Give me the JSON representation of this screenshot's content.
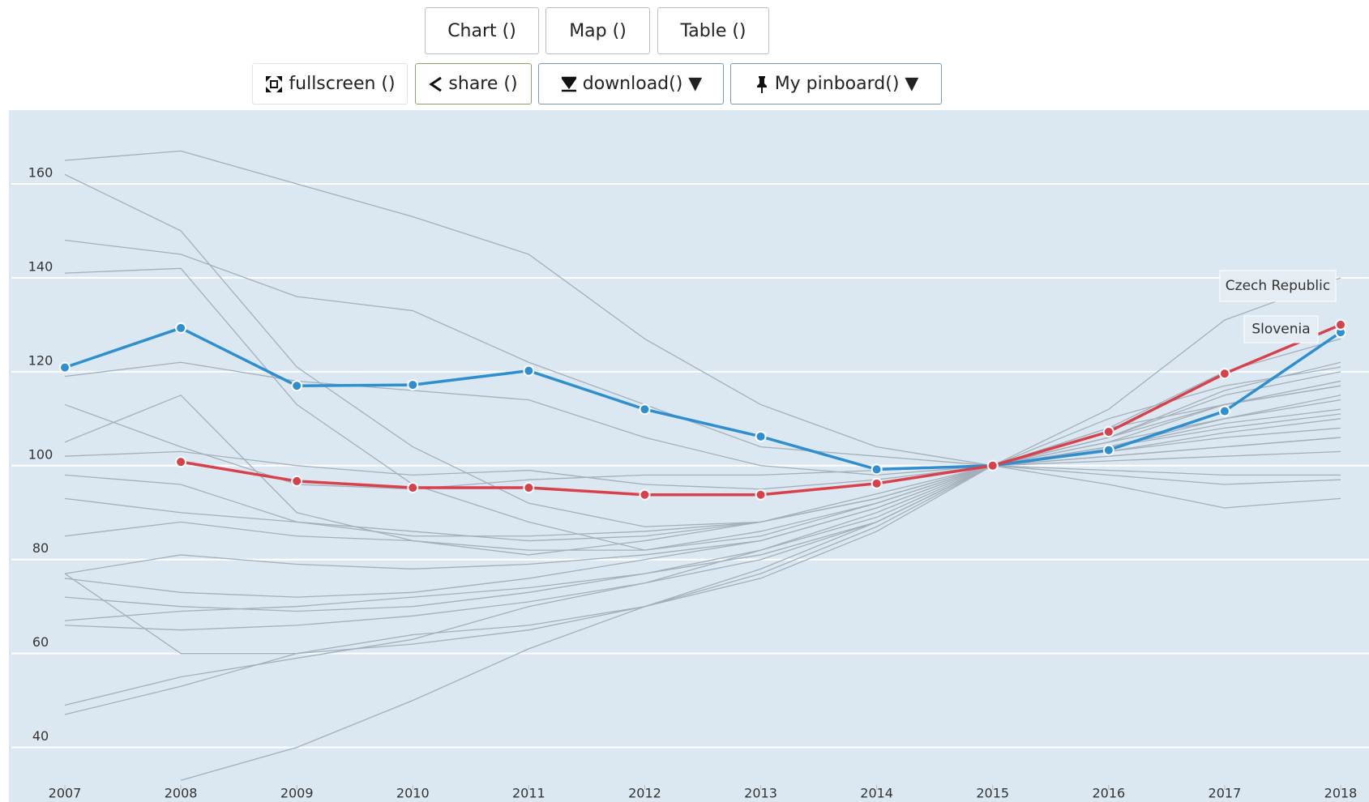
{
  "buttons": {
    "row1": [
      "Chart ()",
      "Map ()",
      "Table ()"
    ],
    "row2": [
      "fullscreen ()",
      "share ()",
      "download() ▼",
      "My pinboard() ▼"
    ]
  },
  "chart_data": {
    "type": "line",
    "x": [
      2007,
      2008,
      2009,
      2010,
      2011,
      2012,
      2013,
      2014,
      2015,
      2016,
      2017,
      2018
    ],
    "xlim": [
      2007,
      2018
    ],
    "xticks": [
      2007,
      2008,
      2009,
      2010,
      2011,
      2012,
      2013,
      2014,
      2015,
      2016,
      2017,
      2018
    ],
    "ylim": [
      32,
      175
    ],
    "yticks": [
      40,
      60,
      80,
      100,
      120,
      140,
      160
    ],
    "grid": true,
    "markers": true,
    "series": [
      {
        "name": "Slovenia",
        "color": "#2e8fd0",
        "values": [
          120.9,
          129.3,
          117.0,
          117.2,
          120.2,
          112.0,
          106.2,
          99.2,
          100,
          103.3,
          111.6,
          128.4
        ]
      },
      {
        "name": "Czech Republic",
        "color": "#d8414b",
        "values": [
          null,
          100.8,
          96.7,
          95.3,
          95.3,
          93.8,
          93.8,
          96.2,
          100,
          107.2,
          119.6,
          130.0
        ]
      }
    ],
    "background_series": {
      "color": "#a3afb9",
      "lines": [
        [
          165,
          167,
          160,
          153,
          145,
          127,
          113,
          104,
          100,
          98,
          96,
          97
        ],
        [
          162,
          150,
          121,
          104,
          92,
          87,
          88,
          93,
          100,
          106,
          116,
          122
        ],
        [
          148,
          145,
          136,
          133,
          122,
          113,
          104,
          102,
          100,
          105,
          113,
          118
        ],
        [
          141,
          142,
          113,
          96,
          88,
          82,
          85,
          92,
          100,
          104,
          110,
          115
        ],
        [
          113,
          104,
          96,
          95,
          97,
          98,
          98,
          99,
          100,
          102,
          104,
          106
        ],
        [
          105,
          115,
          90,
          84,
          81,
          84,
          88,
          94,
          100,
          108,
          120,
          127
        ],
        [
          102,
          103,
          100,
          98,
          99,
          96,
          95,
          97,
          100,
          103,
          107,
          110
        ],
        [
          98,
          96,
          88,
          86,
          84,
          85,
          88,
          93,
          100,
          112,
          131,
          140
        ],
        [
          93,
          90,
          88,
          85,
          85,
          86,
          88,
          93,
          100,
          96,
          91,
          93
        ],
        [
          85,
          88,
          85,
          84,
          82,
          82,
          86,
          92,
          100,
          106,
          113,
          117
        ],
        [
          77,
          81,
          79,
          78,
          79,
          81,
          84,
          91,
          100,
          105,
          110,
          114
        ],
        [
          76,
          73,
          72,
          73,
          76,
          80,
          84,
          91,
          100,
          104,
          108,
          111
        ],
        [
          72,
          70,
          69,
          70,
          73,
          77,
          82,
          89,
          100,
          103,
          106,
          108
        ],
        [
          67,
          69,
          70,
          72,
          74,
          77,
          81,
          88,
          100,
          102,
          104,
          106
        ],
        [
          66,
          65,
          66,
          68,
          71,
          75,
          80,
          88,
          100,
          101,
          102,
          103
        ],
        [
          49,
          55,
          59,
          63,
          70,
          75,
          82,
          90,
          100,
          99,
          98,
          98
        ],
        [
          47,
          53,
          60,
          64,
          66,
          70,
          77,
          87,
          100,
          110,
          117,
          121
        ],
        [
          null,
          33,
          40,
          50,
          61,
          70,
          78,
          88,
          100,
          108,
          113,
          117
        ],
        [
          77,
          60,
          60,
          62,
          65,
          70,
          76,
          86,
          100,
          104,
          109,
          112
        ],
        [
          119,
          122,
          118,
          116,
          114,
          106,
          100,
          98,
          100,
          106,
          115,
          120
        ]
      ]
    }
  }
}
